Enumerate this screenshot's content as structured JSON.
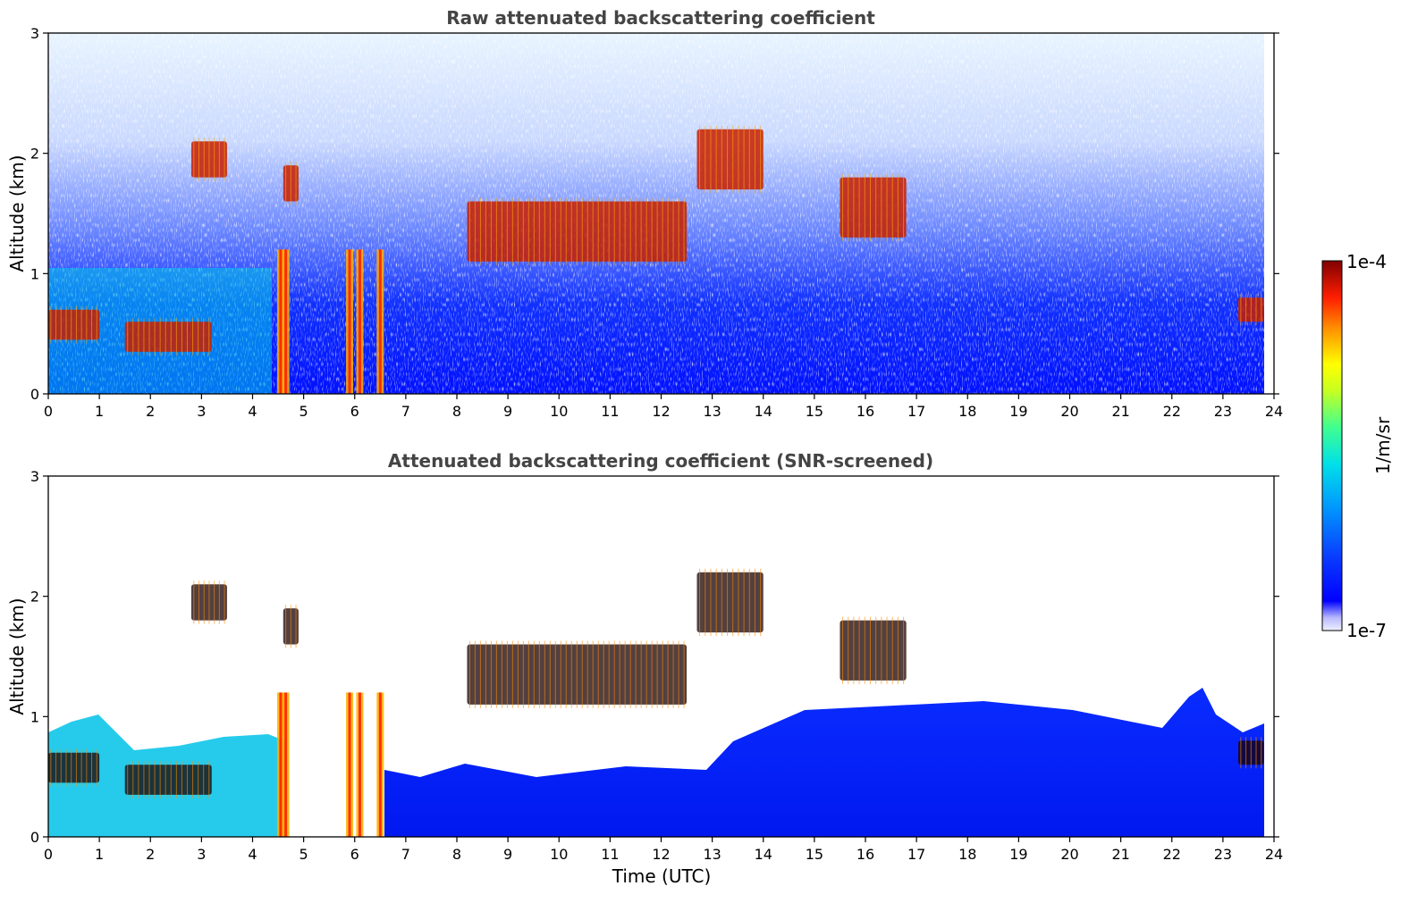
{
  "chart_data": [
    {
      "type": "heatmap",
      "title": "Raw attenuated backscattering coefficient",
      "xlabel": "",
      "ylabel": "Altitude (km)",
      "xlim": [
        0,
        24
      ],
      "ylim": [
        0,
        3
      ],
      "xticks": [
        "0",
        "1",
        "2",
        "3",
        "4",
        "5",
        "6",
        "7",
        "8",
        "9",
        "10",
        "11",
        "12",
        "13",
        "14",
        "15",
        "16",
        "17",
        "18",
        "19",
        "20",
        "21",
        "22",
        "23",
        "24"
      ],
      "yticks": [
        "0",
        "1",
        "2",
        "3"
      ],
      "screened": false,
      "cloud_layers": [
        {
          "t0": 0.0,
          "t1": 1.0,
          "base_km": 0.45,
          "top_km": 0.7
        },
        {
          "t0": 1.5,
          "t1": 3.2,
          "base_km": 0.35,
          "top_km": 0.6
        },
        {
          "t0": 2.8,
          "t1": 3.5,
          "base_km": 1.8,
          "top_km": 2.1
        },
        {
          "t0": 4.6,
          "t1": 4.9,
          "base_km": 1.6,
          "top_km": 1.9
        },
        {
          "t0": 8.2,
          "t1": 12.5,
          "base_km": 1.1,
          "top_km": 1.6
        },
        {
          "t0": 12.7,
          "t1": 14.0,
          "base_km": 1.7,
          "top_km": 2.2
        },
        {
          "t0": 15.5,
          "t1": 16.8,
          "base_km": 1.3,
          "top_km": 1.8
        },
        {
          "t0": 23.3,
          "t1": 23.8,
          "base_km": 0.6,
          "top_km": 0.8
        }
      ],
      "precipitation_shafts_utc": [
        4.55,
        4.65,
        5.9,
        6.1,
        6.5
      ]
    },
    {
      "type": "heatmap",
      "title": "Attenuated backscattering coefficient (SNR-screened)",
      "xlabel": "Time (UTC)",
      "ylabel": "Altitude (km)",
      "xlim": [
        0,
        24
      ],
      "ylim": [
        0,
        3
      ],
      "xticks": [
        "0",
        "1",
        "2",
        "3",
        "4",
        "5",
        "6",
        "7",
        "8",
        "9",
        "10",
        "11",
        "12",
        "13",
        "14",
        "15",
        "16",
        "17",
        "18",
        "19",
        "20",
        "21",
        "22",
        "23",
        "24"
      ],
      "yticks": [
        "0",
        "1",
        "2",
        "3"
      ],
      "screened": true,
      "cloud_layers": [
        {
          "t0": 0.0,
          "t1": 1.0,
          "base_km": 0.45,
          "top_km": 0.7
        },
        {
          "t0": 1.5,
          "t1": 3.2,
          "base_km": 0.35,
          "top_km": 0.6
        },
        {
          "t0": 2.8,
          "t1": 3.5,
          "base_km": 1.8,
          "top_km": 2.1
        },
        {
          "t0": 4.6,
          "t1": 4.9,
          "base_km": 1.6,
          "top_km": 1.9
        },
        {
          "t0": 8.2,
          "t1": 12.5,
          "base_km": 1.1,
          "top_km": 1.6
        },
        {
          "t0": 12.7,
          "t1": 14.0,
          "base_km": 1.7,
          "top_km": 2.2
        },
        {
          "t0": 15.5,
          "t1": 16.8,
          "base_km": 1.3,
          "top_km": 1.8
        },
        {
          "t0": 23.3,
          "t1": 23.8,
          "base_km": 0.6,
          "top_km": 0.8
        }
      ],
      "precipitation_shafts_utc": [
        4.55,
        4.65,
        5.9,
        6.1,
        6.5
      ]
    }
  ],
  "colorbar": {
    "max_label": "1e-4",
    "min_label": "1e-7",
    "unit_label": "1/m/sr",
    "scale": "log",
    "range": [
      1e-07,
      0.0001
    ]
  },
  "colors": {
    "low": "#0000ff",
    "mid": "#00e5ff",
    "high": "#ffff00",
    "top": "#8b0000"
  }
}
